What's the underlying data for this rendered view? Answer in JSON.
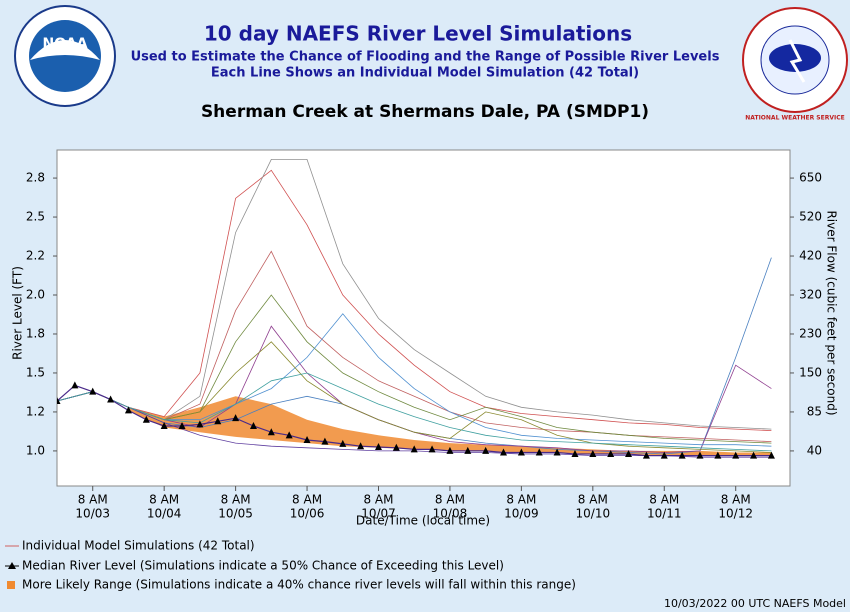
{
  "header": {
    "title": "10 day NAEFS River Level Simulations",
    "subtitle_lines": [
      "Used to Estimate the Chance of Flooding and the Range of Possible River Levels",
      "Each Line Shows an Individual Model Simulation (42 Total)"
    ],
    "noaa_logo": "NOAA",
    "nws_logo": "NATIONAL WEATHER SERVICE"
  },
  "chart_data": {
    "type": "line",
    "title": "Sherman Creek at Shermans Dale, PA (SMDP1)",
    "y_label": "River Level (FT)",
    "y2_label": "River Flow (cubic feet per second)",
    "x_label": "Date/Time (local time)",
    "xlim": [
      -0.5,
      9.76
    ],
    "xticks": [
      {
        "value": 0,
        "label": [
          "8 AM",
          "10/03"
        ]
      },
      {
        "value": 1,
        "label": [
          "8 AM",
          "10/04"
        ]
      },
      {
        "value": 2,
        "label": [
          "8 AM",
          "10/05"
        ]
      },
      {
        "value": 3,
        "label": [
          "8 AM",
          "10/06"
        ]
      },
      {
        "value": 4,
        "label": [
          "8 AM",
          "10/07"
        ]
      },
      {
        "value": 5,
        "label": [
          "8 AM",
          "10/08"
        ]
      },
      {
        "value": 6,
        "label": [
          "8 AM",
          "10/09"
        ]
      },
      {
        "value": 7,
        "label": [
          "8 AM",
          "10/10"
        ]
      },
      {
        "value": 8,
        "label": [
          "8 AM",
          "10/11"
        ]
      },
      {
        "value": 9,
        "label": [
          "8 AM",
          "10/12"
        ]
      }
    ],
    "ylim": [
      0.775,
      2.93
    ],
    "yticks": [
      {
        "value": 1.0,
        "label": "1.0"
      },
      {
        "value": 1.25,
        "label": "1.2"
      },
      {
        "value": 1.5,
        "label": "1.5"
      },
      {
        "value": 1.75,
        "label": "1.8"
      },
      {
        "value": 2.0,
        "label": "2.0"
      },
      {
        "value": 2.25,
        "label": "2.2"
      },
      {
        "value": 2.5,
        "label": "2.5"
      },
      {
        "value": 2.75,
        "label": "2.8"
      }
    ],
    "y2ticks": [
      40,
      85,
      150,
      230,
      320,
      420,
      520,
      650
    ],
    "series": [
      {
        "name": "Individual Model Simulations (42 Total)",
        "color": "#d06060",
        "x": [
          -0.5,
          0,
          0.5,
          1,
          1.5,
          2,
          2.5,
          3,
          3.5,
          4,
          4.5,
          5,
          5.5,
          6,
          6.5,
          7,
          7.5,
          8,
          8.5,
          9,
          9.5
        ],
        "line_colors": [
          "#d05050",
          "#909090",
          "#c06060",
          "#708a40",
          "#4a80c0",
          "#904090",
          "#5090d0",
          "#8a8a30",
          "#6040a0",
          "#40a0a0"
        ],
        "lines": [
          [
            1.32,
            1.38,
            1.28,
            1.22,
            1.5,
            2.62,
            2.8,
            2.45,
            2.0,
            1.75,
            1.55,
            1.38,
            1.28,
            1.24,
            1.22,
            1.2,
            1.18,
            1.17,
            1.15,
            1.14,
            1.13
          ],
          [
            1.32,
            1.38,
            1.28,
            1.2,
            1.35,
            2.4,
            2.87,
            2.87,
            2.2,
            1.85,
            1.65,
            1.5,
            1.35,
            1.28,
            1.25,
            1.23,
            1.2,
            1.18,
            1.16,
            1.15,
            1.14
          ],
          [
            1.32,
            1.38,
            1.28,
            1.2,
            1.3,
            1.9,
            2.28,
            1.8,
            1.6,
            1.45,
            1.35,
            1.25,
            1.18,
            1.15,
            1.13,
            1.12,
            1.1,
            1.09,
            1.08,
            1.07,
            1.06
          ],
          [
            1.32,
            1.38,
            1.28,
            1.2,
            1.25,
            1.7,
            2.0,
            1.7,
            1.5,
            1.38,
            1.28,
            1.2,
            1.28,
            1.22,
            1.15,
            1.12,
            1.1,
            1.08,
            1.07,
            1.06,
            1.05
          ],
          [
            1.32,
            1.38,
            1.28,
            1.18,
            1.15,
            1.2,
            1.3,
            1.35,
            1.3,
            1.2,
            1.12,
            1.08,
            1.05,
            1.03,
            1.01,
            1.0,
            0.99,
            0.98,
            1.0,
            1.6,
            2.24
          ],
          [
            1.32,
            1.38,
            1.28,
            1.2,
            1.15,
            1.3,
            1.8,
            1.5,
            1.3,
            1.2,
            1.12,
            1.06,
            1.04,
            1.03,
            1.02,
            1.0,
            1.0,
            0.99,
            1.0,
            1.55,
            1.4
          ],
          [
            1.32,
            1.38,
            1.28,
            1.2,
            1.2,
            1.3,
            1.4,
            1.6,
            1.88,
            1.6,
            1.4,
            1.25,
            1.15,
            1.1,
            1.08,
            1.07,
            1.06,
            1.05,
            1.04,
            1.04,
            1.03
          ],
          [
            1.32,
            1.38,
            1.28,
            1.2,
            1.25,
            1.5,
            1.7,
            1.45,
            1.3,
            1.2,
            1.12,
            1.08,
            1.25,
            1.2,
            1.1,
            1.05,
            1.03,
            1.02,
            1.01,
            1.0,
            0.99
          ],
          [
            1.32,
            1.38,
            1.28,
            1.18,
            1.1,
            1.05,
            1.03,
            1.02,
            1.01,
            1.0,
            1.0,
            0.99,
            0.99,
            0.98,
            0.98,
            0.97,
            0.97,
            0.97,
            0.96,
            0.96,
            0.96
          ],
          [
            1.32,
            1.38,
            1.28,
            1.2,
            1.18,
            1.3,
            1.45,
            1.5,
            1.4,
            1.3,
            1.22,
            1.15,
            1.1,
            1.07,
            1.06,
            1.05,
            1.04,
            1.03,
            1.02,
            1.01,
            1.0
          ]
        ]
      },
      {
        "name": "Median River Level (Simulations indicate a 50% Chance of Exceeding this Level)",
        "color": "#000000",
        "x": [
          -0.5,
          -0.25,
          0,
          0.25,
          0.5,
          0.75,
          1,
          1.25,
          1.5,
          1.75,
          2,
          2.25,
          2.5,
          2.75,
          3,
          3.25,
          3.5,
          3.75,
          4,
          4.25,
          4.5,
          4.75,
          5,
          5.25,
          5.5,
          5.75,
          6,
          6.25,
          6.5,
          6.75,
          7,
          7.25,
          7.5,
          7.75,
          8,
          8.25,
          8.5,
          8.75,
          9,
          9.25,
          9.5
        ],
        "values": [
          1.32,
          1.42,
          1.38,
          1.33,
          1.26,
          1.2,
          1.16,
          1.16,
          1.17,
          1.19,
          1.21,
          1.16,
          1.12,
          1.1,
          1.07,
          1.06,
          1.045,
          1.03,
          1.025,
          1.02,
          1.01,
          1.01,
          1.0,
          1.0,
          1.0,
          0.99,
          0.99,
          0.99,
          0.99,
          0.98,
          0.98,
          0.98,
          0.98,
          0.97,
          0.97,
          0.97,
          0.97,
          0.97,
          0.97,
          0.97,
          0.97
        ]
      },
      {
        "name": "More Likely Range (Simulations indicate a 40% chance river levels will fall within this range)",
        "color": "#f08a30",
        "x": [
          0.5,
          1,
          1.5,
          2,
          2.5,
          3,
          3.5,
          4,
          4.5,
          5,
          5.5,
          6,
          6.5,
          7,
          7.5,
          8,
          8.5,
          9,
          9.5
        ],
        "lower": [
          1.26,
          1.15,
          1.12,
          1.09,
          1.07,
          1.05,
          1.03,
          1.02,
          1.01,
          1.0,
          1.0,
          0.99,
          0.99,
          0.98,
          0.98,
          0.97,
          0.97,
          0.97,
          0.97
        ],
        "upper": [
          1.28,
          1.22,
          1.28,
          1.35,
          1.3,
          1.2,
          1.14,
          1.1,
          1.07,
          1.05,
          1.04,
          1.03,
          1.02,
          1.01,
          1.0,
          1.0,
          1.0,
          0.99,
          0.99
        ]
      }
    ]
  },
  "footer": "10/03/2022 00 UTC NAEFS Model"
}
